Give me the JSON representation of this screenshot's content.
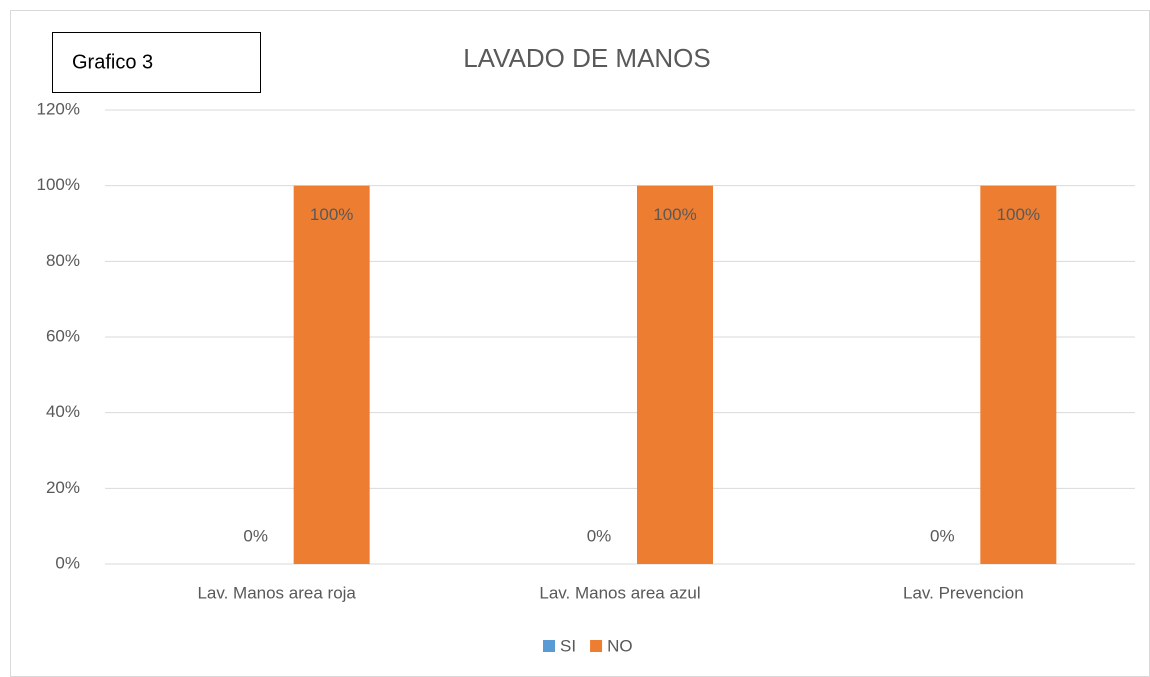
{
  "chart_data": {
    "type": "bar",
    "title": "LAVADO DE MANOS",
    "annotation": "Grafico 3",
    "categories": [
      "Lav. Manos area roja",
      "Lav. Manos area azul",
      "Lav. Prevencion"
    ],
    "series": [
      {
        "name": "SI",
        "color": "#5b9bd5",
        "values": [
          0,
          0,
          0
        ],
        "value_labels": [
          "0%",
          "0%",
          "0%"
        ]
      },
      {
        "name": "NO",
        "color": "#ed7d31",
        "values": [
          100,
          100,
          100
        ],
        "value_labels": [
          "100%",
          "100%",
          "100%"
        ]
      }
    ],
    "ylim": [
      0,
      120
    ],
    "yticks": [
      {
        "value": 0,
        "label": "0%"
      },
      {
        "value": 20,
        "label": "20%"
      },
      {
        "value": 40,
        "label": "40%"
      },
      {
        "value": 60,
        "label": "60%"
      },
      {
        "value": 80,
        "label": "80%"
      },
      {
        "value": 100,
        "label": "100%"
      },
      {
        "value": 120,
        "label": "120%"
      }
    ],
    "grid": true,
    "legend": "bottom"
  }
}
